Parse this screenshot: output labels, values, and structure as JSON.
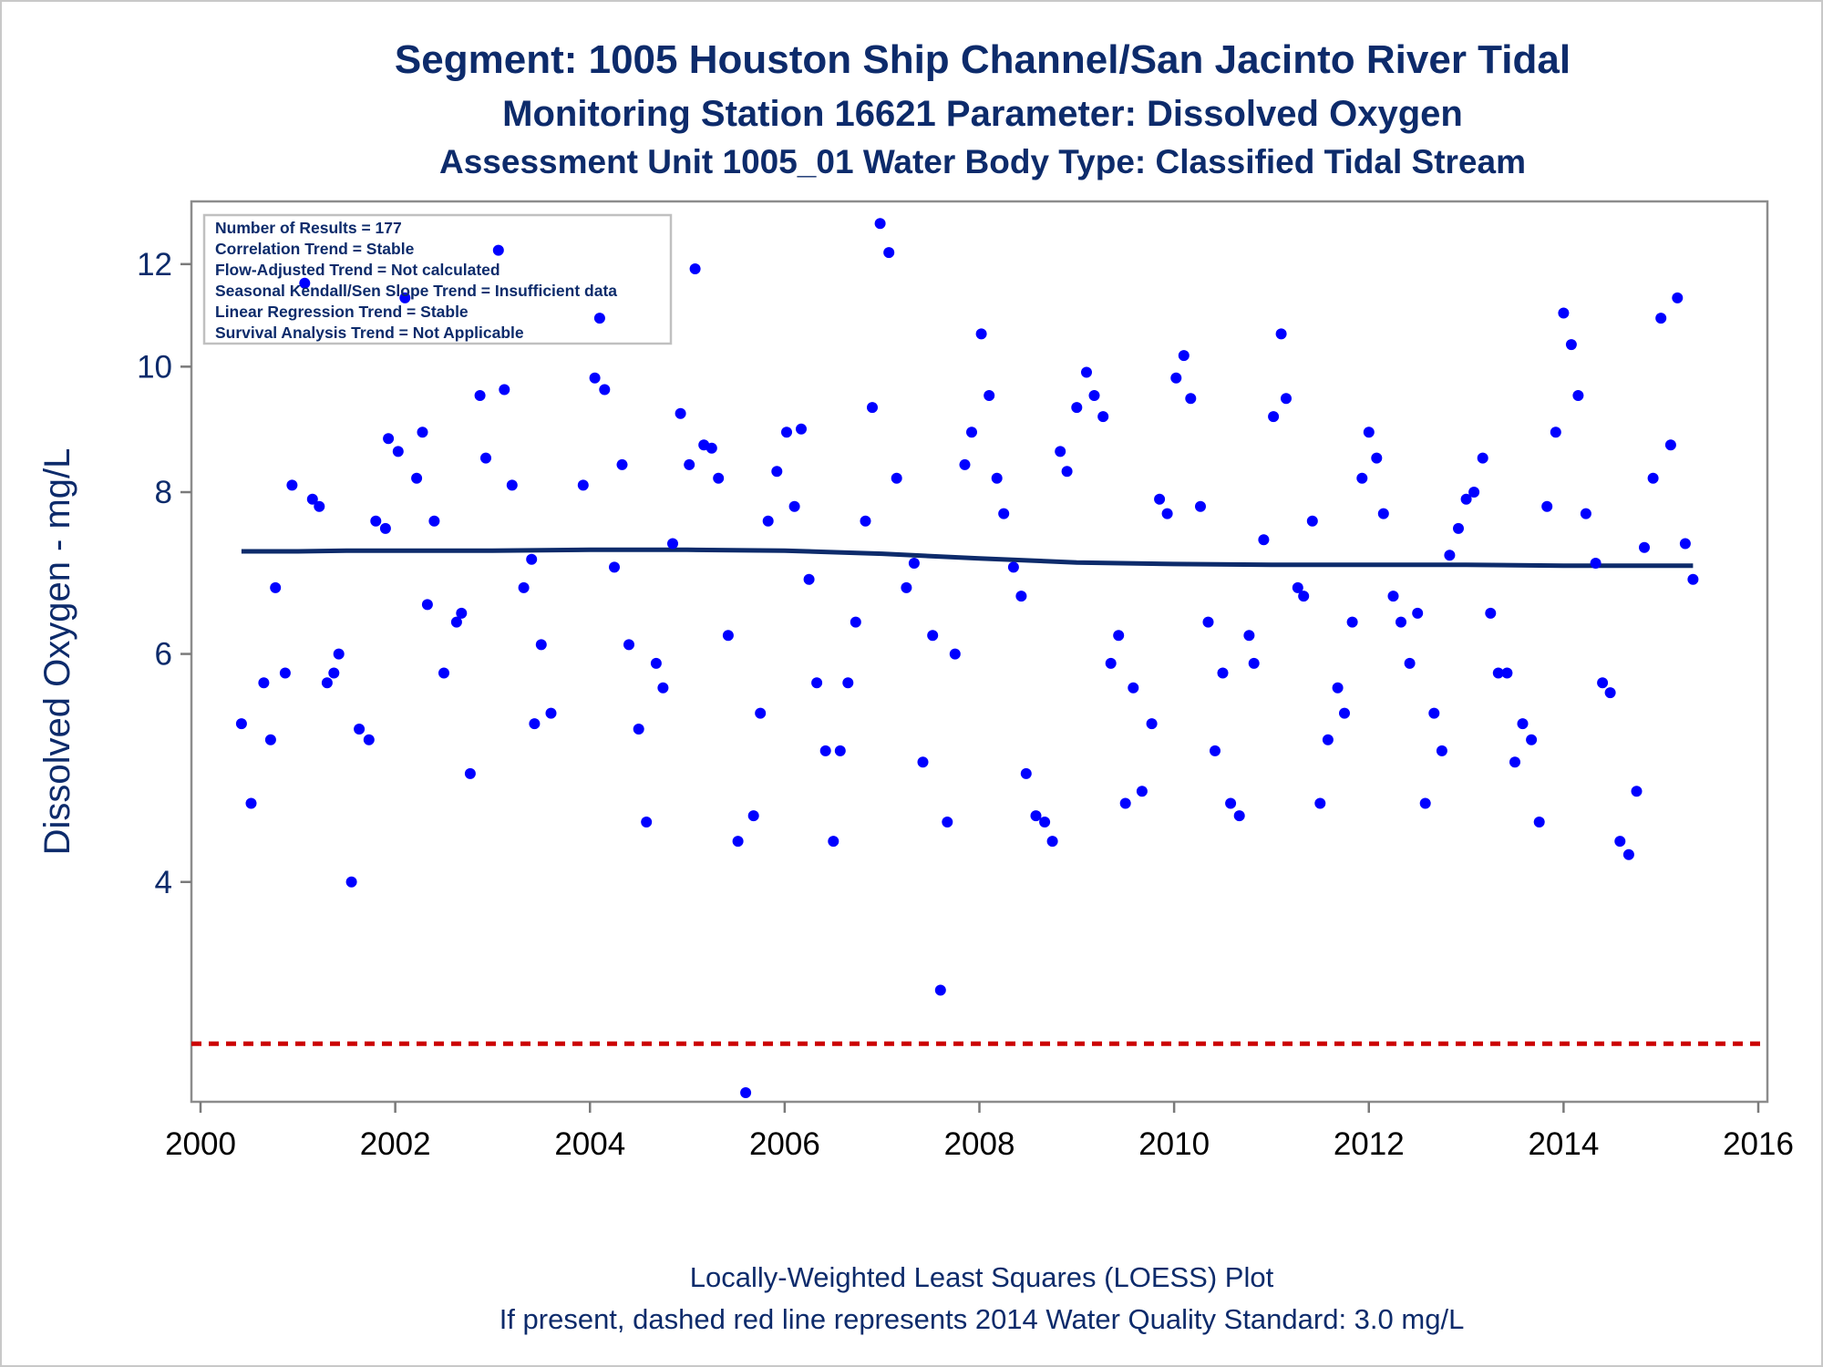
{
  "chart_data": {
    "type": "scatter",
    "title": "Segment: 1005  Houston Ship Channel/San Jacinto River Tidal",
    "subtitle": "Monitoring Station 16621 Parameter: Dissolved Oxygen",
    "subtitle2": "Assessment Unit 1005_01   Water Body Type: Classified Tidal Stream",
    "xlabel": "",
    "ylabel": "Dissolved Oxygen - mg/L",
    "y_scale": "log",
    "xlim": [
      2000,
      2016
    ],
    "ylim": [
      2.75,
      13.2
    ],
    "x_ticks": [
      2000,
      2002,
      2004,
      2006,
      2008,
      2010,
      2012,
      2014,
      2016
    ],
    "y_ticks": [
      4,
      6,
      8,
      10,
      12
    ],
    "grid": false,
    "info_box": [
      "Number of Results = 177",
      "Correlation Trend = Stable",
      "Flow-Adjusted Trend = Not calculated",
      "Seasonal Kendall/Sen Slope Trend = Insufficient data",
      "Linear Regression Trend = Stable",
      "Survival Analysis Trend = Not Applicable"
    ],
    "footnotes": [
      "Locally-Weighted Least Squares (LOESS) Plot",
      "If present, dashed red line represents 2014 Water Quality Standard: 3.0 mg/L"
    ],
    "colors": {
      "points": "#0000ff",
      "loess": "#0d2b6b",
      "standard": "#cc0000",
      "text": "#0d2b6b"
    },
    "standard_line": {
      "y": 3.0,
      "style": "dashed"
    },
    "loess": {
      "x": [
        2000.42,
        2001.0,
        2001.5,
        2002.0,
        2003.0,
        2004.0,
        2005.0,
        2006.0,
        2007.0,
        2008.0,
        2009.0,
        2010.0,
        2011.0,
        2012.0,
        2013.0,
        2014.0,
        2015.33
      ],
      "y": [
        7.2,
        7.2,
        7.21,
        7.21,
        7.21,
        7.22,
        7.22,
        7.21,
        7.17,
        7.11,
        7.06,
        7.04,
        7.03,
        7.03,
        7.03,
        7.02,
        7.02
      ]
    },
    "points": [
      [
        2000.42,
        5.3
      ],
      [
        2000.52,
        4.6
      ],
      [
        2000.65,
        5.7
      ],
      [
        2000.72,
        5.15
      ],
      [
        2000.77,
        6.75
      ],
      [
        2000.87,
        5.8
      ],
      [
        2000.94,
        8.1
      ],
      [
        2001.07,
        11.6
      ],
      [
        2001.15,
        7.9
      ],
      [
        2001.22,
        7.8
      ],
      [
        2001.3,
        5.7
      ],
      [
        2001.37,
        5.8
      ],
      [
        2001.42,
        6.0
      ],
      [
        2001.55,
        4.0
      ],
      [
        2001.63,
        5.25
      ],
      [
        2001.73,
        5.15
      ],
      [
        2001.8,
        7.6
      ],
      [
        2001.93,
        8.8
      ],
      [
        2001.9,
        7.5
      ],
      [
        2002.03,
        8.6
      ],
      [
        2002.1,
        11.3
      ],
      [
        2002.22,
        8.2
      ],
      [
        2002.28,
        8.9
      ],
      [
        2002.33,
        6.55
      ],
      [
        2002.4,
        7.6
      ],
      [
        2002.5,
        5.8
      ],
      [
        2002.63,
        6.35
      ],
      [
        2002.68,
        6.45
      ],
      [
        2002.77,
        4.85
      ],
      [
        2002.87,
        9.5
      ],
      [
        2002.93,
        8.5
      ],
      [
        2003.06,
        12.3
      ],
      [
        2003.12,
        9.6
      ],
      [
        2003.2,
        8.1
      ],
      [
        2003.32,
        6.75
      ],
      [
        2003.4,
        7.1
      ],
      [
        2003.43,
        5.3
      ],
      [
        2003.5,
        6.1
      ],
      [
        2003.6,
        5.4
      ],
      [
        2003.93,
        8.1
      ],
      [
        2004.05,
        9.8
      ],
      [
        2004.1,
        10.9
      ],
      [
        2004.15,
        9.6
      ],
      [
        2004.25,
        7.0
      ],
      [
        2004.33,
        8.4
      ],
      [
        2004.4,
        6.1
      ],
      [
        2004.5,
        5.25
      ],
      [
        2004.58,
        4.45
      ],
      [
        2004.68,
        5.9
      ],
      [
        2004.75,
        5.65
      ],
      [
        2004.85,
        7.3
      ],
      [
        2004.93,
        9.2
      ],
      [
        2005.02,
        8.4
      ],
      [
        2005.08,
        11.9
      ],
      [
        2005.17,
        8.7
      ],
      [
        2005.25,
        8.65
      ],
      [
        2005.32,
        8.2
      ],
      [
        2005.42,
        6.2
      ],
      [
        2005.52,
        4.3
      ],
      [
        2005.6,
        2.75
      ],
      [
        2005.68,
        4.5
      ],
      [
        2005.75,
        5.4
      ],
      [
        2005.83,
        7.6
      ],
      [
        2005.92,
        8.3
      ],
      [
        2006.02,
        8.9
      ],
      [
        2006.1,
        7.8
      ],
      [
        2006.17,
        8.95
      ],
      [
        2006.25,
        6.85
      ],
      [
        2006.33,
        5.7
      ],
      [
        2006.42,
        5.05
      ],
      [
        2006.5,
        4.3
      ],
      [
        2006.57,
        5.05
      ],
      [
        2006.65,
        5.7
      ],
      [
        2006.73,
        6.35
      ],
      [
        2006.83,
        7.6
      ],
      [
        2006.9,
        9.3
      ],
      [
        2006.98,
        12.9
      ],
      [
        2007.07,
        12.25
      ],
      [
        2007.15,
        8.2
      ],
      [
        2007.25,
        6.75
      ],
      [
        2007.33,
        7.05
      ],
      [
        2007.42,
        4.95
      ],
      [
        2007.52,
        6.2
      ],
      [
        2007.6,
        3.3
      ],
      [
        2007.67,
        4.45
      ],
      [
        2007.75,
        6.0
      ],
      [
        2007.85,
        8.4
      ],
      [
        2007.92,
        8.9
      ],
      [
        2008.02,
        10.6
      ],
      [
        2008.1,
        9.5
      ],
      [
        2008.18,
        8.2
      ],
      [
        2008.25,
        7.7
      ],
      [
        2008.35,
        7.0
      ],
      [
        2008.43,
        6.65
      ],
      [
        2008.48,
        4.85
      ],
      [
        2008.58,
        4.5
      ],
      [
        2008.67,
        4.45
      ],
      [
        2008.75,
        4.3
      ],
      [
        2008.83,
        8.6
      ],
      [
        2008.9,
        8.3
      ],
      [
        2009.0,
        9.3
      ],
      [
        2009.1,
        9.9
      ],
      [
        2009.18,
        9.5
      ],
      [
        2009.27,
        9.15
      ],
      [
        2009.35,
        5.9
      ],
      [
        2009.43,
        6.2
      ],
      [
        2009.5,
        4.6
      ],
      [
        2009.58,
        5.65
      ],
      [
        2009.67,
        4.7
      ],
      [
        2009.77,
        5.3
      ],
      [
        2009.85,
        7.9
      ],
      [
        2009.93,
        7.7
      ],
      [
        2010.02,
        9.8
      ],
      [
        2010.1,
        10.2
      ],
      [
        2010.17,
        9.45
      ],
      [
        2010.27,
        7.8
      ],
      [
        2010.35,
        6.35
      ],
      [
        2010.42,
        5.05
      ],
      [
        2010.5,
        5.8
      ],
      [
        2010.58,
        4.6
      ],
      [
        2010.67,
        4.5
      ],
      [
        2010.77,
        6.2
      ],
      [
        2010.82,
        5.9
      ],
      [
        2010.92,
        7.35
      ],
      [
        2011.02,
        9.15
      ],
      [
        2011.1,
        10.6
      ],
      [
        2011.15,
        9.45
      ],
      [
        2011.27,
        6.75
      ],
      [
        2011.33,
        6.65
      ],
      [
        2011.42,
        7.6
      ],
      [
        2011.5,
        4.6
      ],
      [
        2011.58,
        5.15
      ],
      [
        2011.68,
        5.65
      ],
      [
        2011.75,
        5.4
      ],
      [
        2011.83,
        6.35
      ],
      [
        2011.93,
        8.2
      ],
      [
        2012.0,
        8.9
      ],
      [
        2012.08,
        8.5
      ],
      [
        2012.15,
        7.7
      ],
      [
        2012.25,
        6.65
      ],
      [
        2012.33,
        6.35
      ],
      [
        2012.42,
        5.9
      ],
      [
        2012.5,
        6.45
      ],
      [
        2012.58,
        4.6
      ],
      [
        2012.67,
        5.4
      ],
      [
        2012.75,
        5.05
      ],
      [
        2012.83,
        7.15
      ],
      [
        2012.92,
        7.5
      ],
      [
        2013.0,
        7.9
      ],
      [
        2013.08,
        8.0
      ],
      [
        2013.17,
        8.5
      ],
      [
        2013.25,
        6.45
      ],
      [
        2013.33,
        5.8
      ],
      [
        2013.42,
        5.8
      ],
      [
        2013.5,
        4.95
      ],
      [
        2013.58,
        5.3
      ],
      [
        2013.67,
        5.15
      ],
      [
        2013.75,
        4.45
      ],
      [
        2013.83,
        7.8
      ],
      [
        2013.92,
        8.9
      ],
      [
        2014.0,
        11.0
      ],
      [
        2014.08,
        10.4
      ],
      [
        2014.15,
        9.5
      ],
      [
        2014.23,
        7.7
      ],
      [
        2014.33,
        7.05
      ],
      [
        2014.4,
        5.7
      ],
      [
        2014.48,
        5.6
      ],
      [
        2014.58,
        4.3
      ],
      [
        2014.67,
        4.2
      ],
      [
        2014.75,
        4.7
      ],
      [
        2014.83,
        7.25
      ],
      [
        2014.92,
        8.2
      ],
      [
        2015.0,
        10.9
      ],
      [
        2015.1,
        8.7
      ],
      [
        2015.17,
        11.3
      ],
      [
        2015.25,
        7.3
      ],
      [
        2015.33,
        6.85
      ]
    ]
  }
}
